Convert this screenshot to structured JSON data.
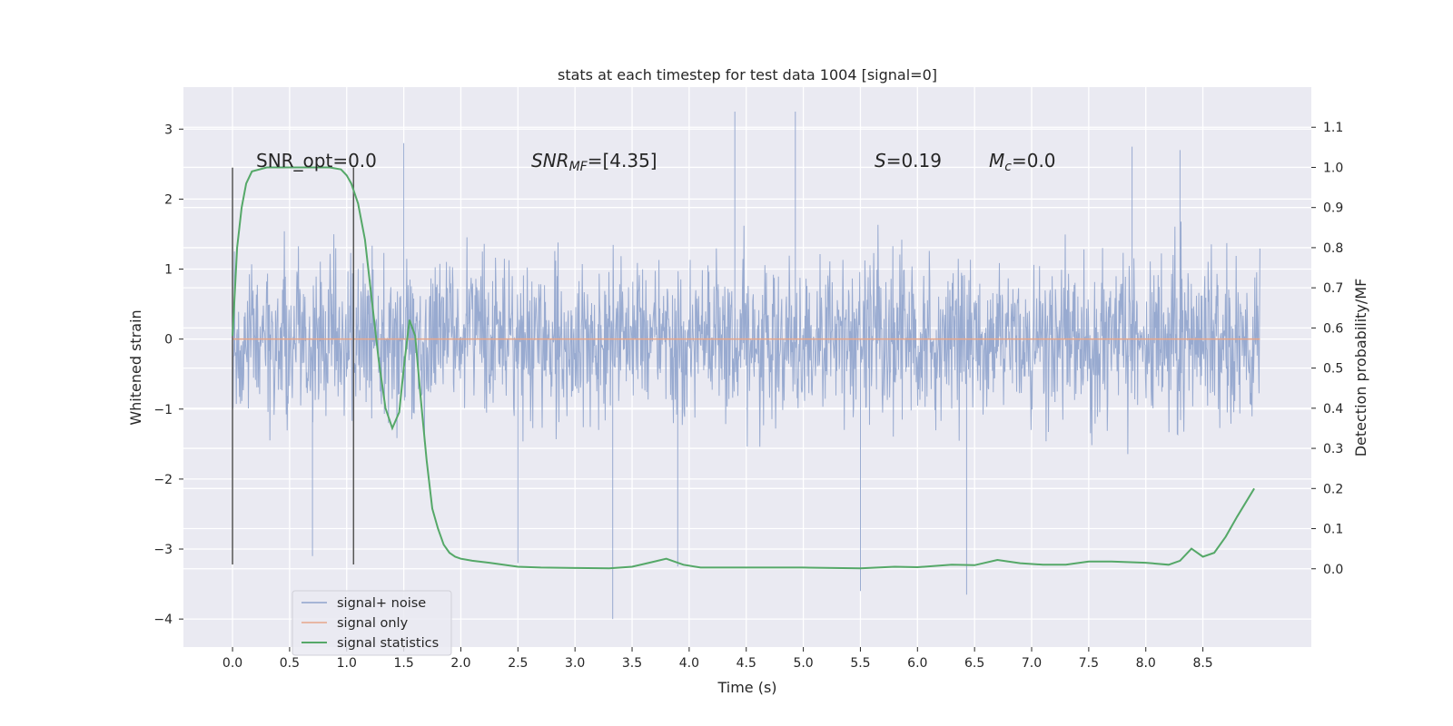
{
  "chart_data": {
    "type": "line",
    "title": "stats at each timestep for test data 1004 [signal=0]",
    "xlabel": "Time (s)",
    "ylabel": "Whitened strain",
    "y2label": "Detection probability/MF",
    "xlim": [
      -0.43,
      9.45
    ],
    "ylim": [
      -4.4,
      3.6
    ],
    "y2lim": [
      -0.195,
      1.2
    ],
    "x_ticks": [
      0.0,
      0.5,
      1.0,
      1.5,
      2.0,
      2.5,
      3.0,
      3.5,
      4.0,
      4.5,
      5.0,
      5.5,
      6.0,
      6.5,
      7.0,
      7.5,
      8.0,
      8.5
    ],
    "x_tick_labels": [
      "0.0",
      "0.5",
      "1.0",
      "1.5",
      "2.0",
      "2.5",
      "3.0",
      "3.5",
      "4.0",
      "4.5",
      "5.0",
      "5.5",
      "6.0",
      "6.5",
      "7.0",
      "7.5",
      "8.0",
      "8.5"
    ],
    "y_ticks": [
      3,
      2,
      1,
      0,
      -1,
      -2,
      -3,
      -4
    ],
    "y_tick_labels": [
      "3",
      "2",
      "1",
      "0",
      "−1",
      "−2",
      "−3",
      "−4"
    ],
    "y2_ticks": [
      1.1,
      1.0,
      0.9,
      0.8,
      0.7,
      0.6,
      0.5,
      0.4,
      0.3,
      0.2,
      0.1,
      0.0
    ],
    "y2_tick_labels": [
      "1.1",
      "1.0",
      "0.9",
      "0.8",
      "0.7",
      "0.6",
      "0.5",
      "0.4",
      "0.3",
      "0.2",
      "0.1",
      "0.0"
    ],
    "grid": true,
    "legend": {
      "placement": "lower-left",
      "entries": [
        "signal+ noise",
        "signal only",
        "signal statistics"
      ]
    },
    "annotations": {
      "snr_opt": "SNR_opt=0.0",
      "snr_mf_sym": "SNR",
      "snr_mf_sub": "MF",
      "snr_mf_val": "=[4.35]",
      "s_sym": "S",
      "s_val": "=0.19",
      "mc_sym": "M",
      "mc_sub": "c",
      "mc_val": "=0.0"
    },
    "vertical_markers": [
      0.0,
      1.06
    ],
    "series": [
      {
        "name": "signal+ noise",
        "axis": "left",
        "color": "#8fa3cc",
        "x_range": [
          0.0,
          9.0
        ],
        "n_samples": 2200,
        "envelope": [
          -2.2,
          2.3
        ],
        "extremes": [
          {
            "x": 4.4,
            "y": 3.25
          },
          {
            "x": 4.93,
            "y": 3.25
          },
          {
            "x": 3.33,
            "y": -4.0
          },
          {
            "x": 5.5,
            "y": -3.6
          },
          {
            "x": 6.43,
            "y": -3.65
          },
          {
            "x": 0.7,
            "y": -3.1
          },
          {
            "x": 1.5,
            "y": 2.8
          },
          {
            "x": 8.3,
            "y": 2.7
          },
          {
            "x": 7.88,
            "y": 2.75
          },
          {
            "x": 2.5,
            "y": -3.2
          },
          {
            "x": 3.9,
            "y": -3.25
          }
        ]
      },
      {
        "name": "signal only",
        "axis": "left",
        "color": "#e6a68a",
        "x": [
          0.0,
          9.0
        ],
        "y": [
          0.0,
          0.0
        ]
      },
      {
        "name": "signal statistics",
        "axis": "right",
        "color": "#55a868",
        "x": [
          0.0,
          0.04,
          0.08,
          0.12,
          0.17,
          0.3,
          0.5,
          0.7,
          0.85,
          0.95,
          1.0,
          1.04,
          1.1,
          1.16,
          1.22,
          1.28,
          1.34,
          1.4,
          1.46,
          1.5,
          1.55,
          1.6,
          1.65,
          1.7,
          1.75,
          1.8,
          1.85,
          1.9,
          1.95,
          2.0,
          2.1,
          2.25,
          2.5,
          2.7,
          3.0,
          3.3,
          3.5,
          3.65,
          3.8,
          3.95,
          4.1,
          4.5,
          5.0,
          5.5,
          5.8,
          6.0,
          6.3,
          6.5,
          6.7,
          6.9,
          7.1,
          7.3,
          7.5,
          7.7,
          8.0,
          8.2,
          8.3,
          8.4,
          8.5,
          8.6,
          8.7,
          8.8,
          8.95
        ],
        "y": [
          0.58,
          0.8,
          0.9,
          0.96,
          0.99,
          1.0,
          1.0,
          1.0,
          1.0,
          0.995,
          0.98,
          0.96,
          0.91,
          0.82,
          0.67,
          0.52,
          0.4,
          0.35,
          0.39,
          0.5,
          0.62,
          0.58,
          0.42,
          0.27,
          0.15,
          0.1,
          0.06,
          0.04,
          0.03,
          0.025,
          0.02,
          0.015,
          0.005,
          0.003,
          0.002,
          0.001,
          0.005,
          0.015,
          0.025,
          0.01,
          0.003,
          0.003,
          0.003,
          0.001,
          0.005,
          0.004,
          0.01,
          0.009,
          0.022,
          0.014,
          0.01,
          0.01,
          0.018,
          0.018,
          0.015,
          0.01,
          0.02,
          0.05,
          0.03,
          0.04,
          0.08,
          0.13,
          0.2
        ]
      }
    ]
  }
}
